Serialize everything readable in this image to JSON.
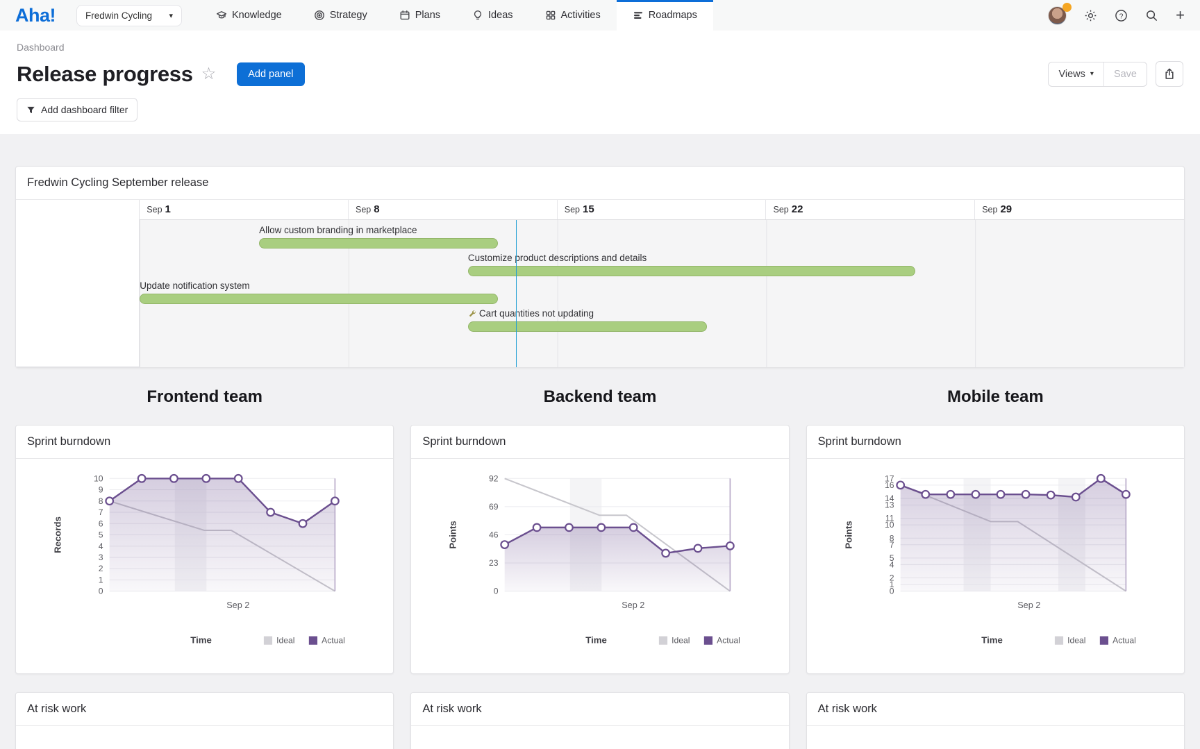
{
  "nav": {
    "logo": "Aha!",
    "workspace_selector": "Fredwin Cycling",
    "items": [
      {
        "label": "Knowledge",
        "icon": "graduation-cap"
      },
      {
        "label": "Strategy",
        "icon": "bullseye"
      },
      {
        "label": "Plans",
        "icon": "calendar"
      },
      {
        "label": "Ideas",
        "icon": "lightbulb"
      },
      {
        "label": "Activities",
        "icon": "grid-squares"
      },
      {
        "label": "Roadmaps",
        "icon": "roadmap-bars",
        "active": true
      }
    ]
  },
  "header": {
    "breadcrumb": "Dashboard",
    "title": "Release progress",
    "add_panel_label": "Add panel",
    "views_label": "Views",
    "save_label": "Save",
    "filter_label": "Add dashboard filter"
  },
  "gantt": {
    "title": "Fredwin Cycling September release",
    "weeks": [
      {
        "month": "Sep",
        "day": "1"
      },
      {
        "month": "Sep",
        "day": "8"
      },
      {
        "month": "Sep",
        "day": "15"
      },
      {
        "month": "Sep",
        "day": "22"
      },
      {
        "month": "Sep",
        "day": "29"
      }
    ],
    "total_days": 35,
    "today_day": 12.6,
    "bars": [
      {
        "label": "Allow custom branding in marketplace",
        "start_day": 4,
        "end_day": 12
      },
      {
        "label": "Customize product descriptions and details",
        "start_day": 11,
        "end_day": 26
      },
      {
        "label": "Update notification system",
        "start_day": 0,
        "end_day": 12
      },
      {
        "label": "Cart quantities not updating",
        "start_day": 11,
        "end_day": 19,
        "icon": "wrench"
      }
    ]
  },
  "teams": [
    {
      "title": "Frontend team",
      "burndown_title": "Sprint burndown",
      "at_risk_title": "At risk work"
    },
    {
      "title": "Backend team",
      "burndown_title": "Sprint burndown",
      "at_risk_title": "At risk work"
    },
    {
      "title": "Mobile team",
      "burndown_title": "Sprint burndown",
      "at_risk_title": "At risk work"
    }
  ],
  "chart_data": [
    {
      "team": "Frontend team",
      "type": "line",
      "title": "Sprint burndown",
      "xlabel": "Time",
      "ylabel": "Records",
      "x_tick_label": "Sep 2",
      "x_tick_pos": 0.57,
      "ylim": [
        0,
        10
      ],
      "yticks": [
        0,
        1,
        2,
        3,
        4,
        5,
        6,
        7,
        8,
        9,
        10
      ],
      "weekend_bands": [
        [
          0.29,
          0.43
        ]
      ],
      "series": [
        {
          "name": "Ideal",
          "points": [
            [
              0,
              8
            ],
            [
              0.42,
              5.4
            ],
            [
              0.54,
              5.4
            ],
            [
              1,
              0
            ]
          ]
        },
        {
          "name": "Actual",
          "values": [
            8,
            10,
            10,
            10,
            10,
            7,
            6,
            8
          ]
        }
      ]
    },
    {
      "team": "Backend team",
      "type": "line",
      "title": "Sprint burndown",
      "xlabel": "Time",
      "ylabel": "Points",
      "x_tick_label": "Sep 2",
      "x_tick_pos": 0.57,
      "ylim": [
        0,
        92
      ],
      "yticks": [
        0,
        23,
        46,
        69,
        92
      ],
      "weekend_bands": [
        [
          0.29,
          0.43
        ]
      ],
      "series": [
        {
          "name": "Ideal",
          "points": [
            [
              0,
              92
            ],
            [
              0.42,
              62
            ],
            [
              0.54,
              62
            ],
            [
              1,
              0
            ]
          ]
        },
        {
          "name": "Actual",
          "values": [
            38,
            52,
            52,
            52,
            52,
            31,
            35,
            37
          ]
        }
      ]
    },
    {
      "team": "Mobile team",
      "type": "line",
      "title": "Sprint burndown",
      "xlabel": "Time",
      "ylabel": "Points",
      "x_tick_label": "Sep 2",
      "x_tick_pos": 0.57,
      "ylim": [
        0,
        17
      ],
      "yticks": [
        0,
        1,
        2,
        4,
        5,
        7,
        8,
        10,
        11,
        13,
        14,
        16,
        17
      ],
      "weekend_bands": [
        [
          0.28,
          0.4
        ],
        [
          0.7,
          0.82
        ]
      ],
      "series": [
        {
          "name": "Ideal",
          "points": [
            [
              0,
              16
            ],
            [
              0.4,
              10.5
            ],
            [
              0.52,
              10.5
            ],
            [
              1,
              0
            ]
          ]
        },
        {
          "name": "Actual",
          "values": [
            16,
            14.6,
            14.6,
            14.6,
            14.6,
            14.6,
            14.5,
            14.2,
            17,
            14.6
          ]
        }
      ]
    }
  ],
  "colors": {
    "accent_blue": "#0d6fd6",
    "bar_green": "#a9ce80",
    "bar_green_border": "#93b669",
    "today_line": "#1f9fd4",
    "actual_purple": "#6b4f8f",
    "ideal_gray": "#c7c6cc",
    "notification_orange": "#f5a623"
  }
}
